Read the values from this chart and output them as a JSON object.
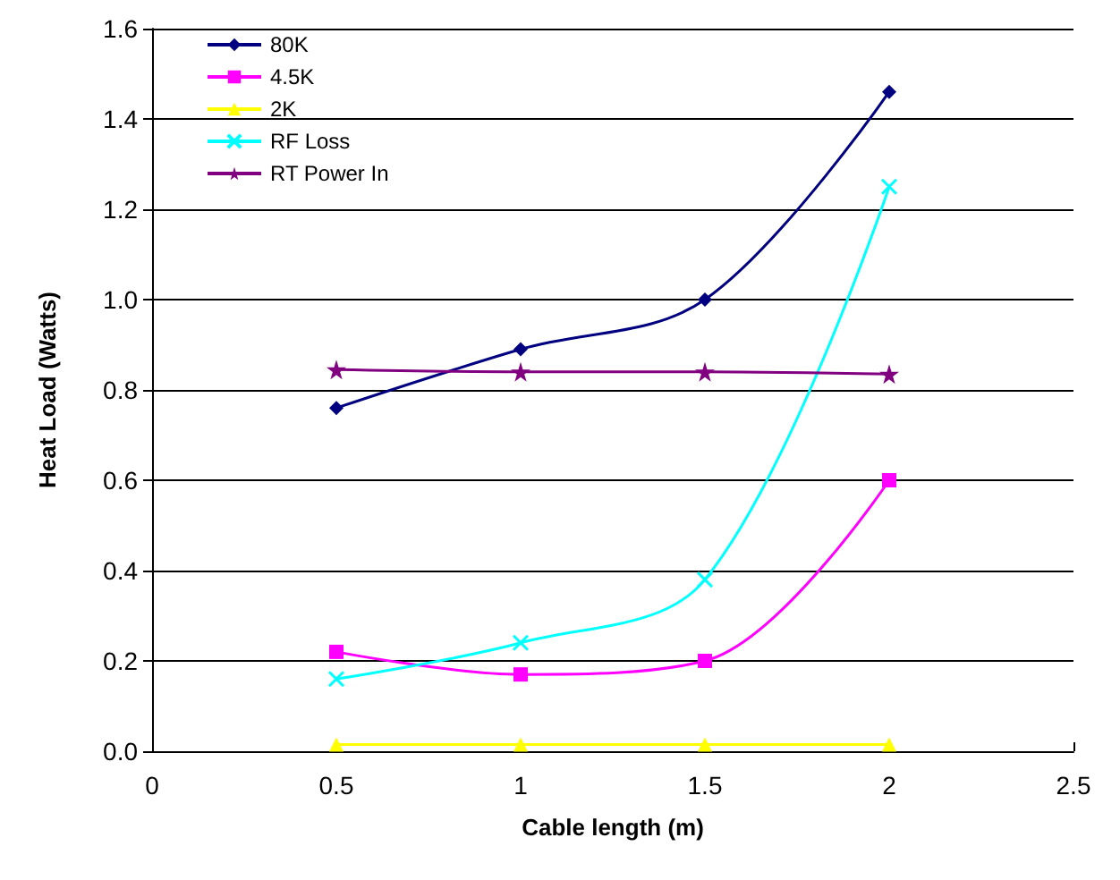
{
  "chart_data": {
    "type": "line",
    "xlabel": "Cable length (m)",
    "ylabel": "Heat Load (Watts)",
    "x": [
      0.5,
      1,
      1.5,
      2
    ],
    "series": [
      {
        "name": "80K",
        "color": "#000080",
        "marker": "diamond",
        "values": [
          0.76,
          0.89,
          1.0,
          1.46
        ]
      },
      {
        "name": "4.5K",
        "color": "#ff00ff",
        "marker": "square",
        "values": [
          0.22,
          0.17,
          0.2,
          0.6
        ]
      },
      {
        "name": "2K",
        "color": "#ffff00",
        "marker": "triangle",
        "values": [
          0.015,
          0.015,
          0.015,
          0.015
        ]
      },
      {
        "name": "RF Loss",
        "color": "#00ffff",
        "marker": "cross",
        "values": [
          0.16,
          0.24,
          0.38,
          1.25
        ]
      },
      {
        "name": "RT Power In",
        "color": "#800080",
        "marker": "star",
        "values": [
          0.845,
          0.84,
          0.84,
          0.835
        ]
      }
    ],
    "xlim": [
      0,
      2.5
    ],
    "xticks": [
      0,
      0.5,
      1,
      1.5,
      2,
      2.5
    ],
    "ylim": [
      0,
      1.6
    ],
    "yticks": [
      {
        "value": 0,
        "label": "0.0"
      },
      0.2,
      0.4,
      0.6,
      0.8,
      {
        "value": 1,
        "label": "1.0"
      },
      1.2,
      1.4,
      1.6
    ],
    "grid": "y",
    "legend": "top left",
    "line_style": "solid"
  }
}
